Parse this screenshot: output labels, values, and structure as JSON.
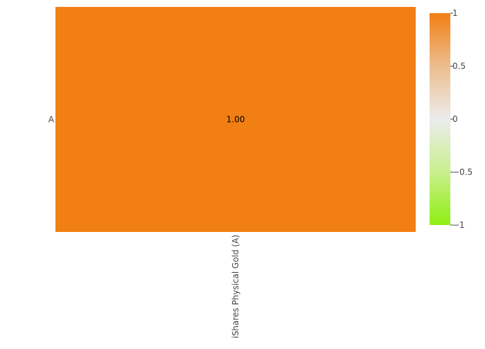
{
  "chart_data": {
    "type": "heatmap",
    "x_categories": [
      "iShares Physical Gold (A)"
    ],
    "y_categories": [
      "A"
    ],
    "values": [
      [
        1.0
      ]
    ],
    "cell_labels": [
      [
        "1.00"
      ]
    ],
    "colorscale": {
      "min": -1,
      "max": 1,
      "stops": [
        {
          "value": -1,
          "color": "#8fef12"
        },
        {
          "value": -0.5,
          "color": "#c9ef8c"
        },
        {
          "value": 0,
          "color": "#ececec"
        },
        {
          "value": 0.5,
          "color": "#ecbd8e"
        },
        {
          "value": 1,
          "color": "#f27f13"
        }
      ],
      "ticks": [
        {
          "value": 1,
          "label": "1"
        },
        {
          "value": 0.5,
          "label": "0.5"
        },
        {
          "value": 0,
          "label": "0"
        },
        {
          "value": -0.5,
          "label": "−0.5"
        },
        {
          "value": -1,
          "label": "−1"
        }
      ]
    }
  }
}
